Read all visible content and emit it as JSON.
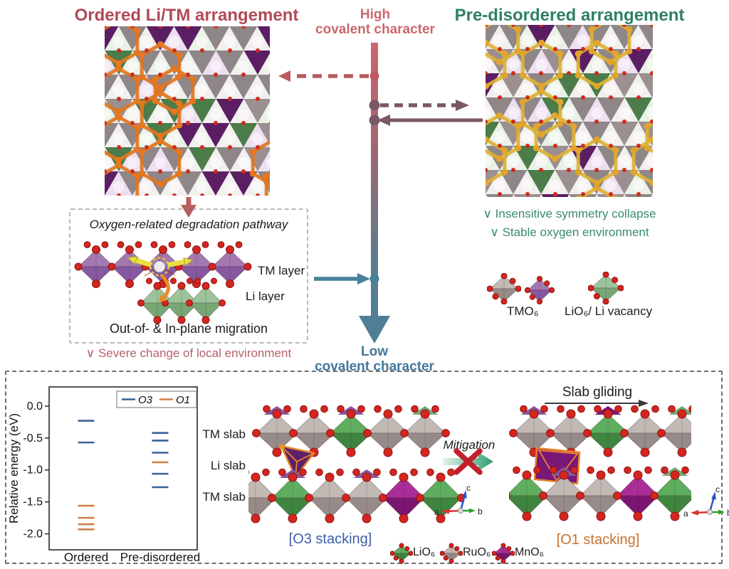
{
  "top": {
    "ordered_title": "Ordered Li/TM arrangement",
    "predisordered_title": "Pre-disordered arrangement",
    "high_line1": "High",
    "high_line2": "covalent character",
    "low_line1": "Low",
    "low_line2": "covalent character"
  },
  "degradation": {
    "title": "Oxygen-related degradation pathway",
    "tm_layer": "TM layer",
    "li_layer": "Li layer",
    "caption": "Out-of- & In-plane migration",
    "note": "∨ Severe change of local environment"
  },
  "predisordered_notes": {
    "note1": "∨ Insensitive symmetry collapse",
    "note2": "∨ Stable oxygen environment"
  },
  "octahedra_legend": {
    "tmo6": "TMO₆",
    "lio6": "LiO₆/ Li vacancy"
  },
  "chart_data": {
    "type": "scatter",
    "marker": "horizontal-level-tick",
    "title": "",
    "xlabel": "",
    "ylabel": "Relative energy (eV)",
    "categories": [
      "Ordered",
      "Pre-disordered"
    ],
    "yticks": [
      0.0,
      -0.5,
      -1.0,
      -1.5,
      -2.0
    ],
    "ylim": [
      -2.25,
      0.3
    ],
    "grid": false,
    "legend_position": "top-right",
    "series": [
      {
        "name": "O3",
        "color": "#3c5f9e",
        "values": [
          [
            -0.23,
            -0.57
          ],
          [
            -0.42,
            -0.54,
            -0.73,
            -1.06,
            -1.27
          ]
        ]
      },
      {
        "name": "O1",
        "color": "#cd8048",
        "values": [
          [
            -1.56,
            -1.75,
            -1.85,
            -1.93
          ],
          [
            -0.88
          ]
        ]
      }
    ]
  },
  "bottom": {
    "tm_slab_top": "TM slab",
    "li_slab": "Li slab",
    "tm_slab_bottom": "TM slab",
    "o3_caption": "[O3 stacking]",
    "o1_caption": "[O1 stacking]",
    "slab_gliding": "Slab gliding",
    "mitigation": "Mitigation",
    "legend": [
      {
        "label": "LiO₆"
      },
      {
        "label": "RuO₆"
      },
      {
        "label": "MnO₆"
      }
    ],
    "axis": {
      "a": "a",
      "b": "b",
      "c": "c"
    }
  },
  "palette": {
    "rose_title": "#b14a57",
    "salmon": "#ca686d",
    "green_title": "#2f8161",
    "teal": "#41789b",
    "mauve": "#7a5866",
    "note_rose": "#b5606a",
    "note_green": "#3a8a70",
    "o3_caption": "#3d5fa8",
    "o1_caption": "#c8702f",
    "red_x": "#c41f2c",
    "mitigation_green": "#2f9e72",
    "sphere_red": "#d42520",
    "poly_orange": "#e8862a",
    "deep_purple": "#5e2069",
    "o1_purple": "#7a1877",
    "octahedra": {
      "gray": [
        "#c2b8b4",
        "#968b88"
      ],
      "tm_purple": [
        "#a478b0",
        "#8558a0"
      ],
      "li_green": [
        "#9cc39a",
        "#78a776"
      ],
      "bright_green": [
        "#5fae5f",
        "#3f8540"
      ],
      "magenta": [
        "#ab2d97",
        "#7c1570"
      ]
    },
    "lattice_ordered": {
      "pale": [
        "#f2f0ef",
        "#eaf1e6",
        "#ecdff0",
        "#f2f0ef"
      ],
      "deep": [
        "#8e8687",
        "#8e8687",
        "#5c1e63",
        "#4c7c49",
        "#8e8687",
        "#9b8f90"
      ],
      "ring": "#e0761f",
      "bigDot": "#e8761f",
      "dot": "#d22b1c"
    },
    "lattice_pre": {
      "pale": [
        "#f2f0ef",
        "#eaf1e6",
        "#ecdff0",
        "#f2f0ef"
      ],
      "deep": [
        "#8e8687",
        "#8e8687",
        "#5c1e63",
        "#4c7c49",
        "#8e8687",
        "#9b8f90"
      ],
      "ring": "#ddb233",
      "bigDot": "#e2a42b",
      "dot": "#d22b1c"
    }
  }
}
